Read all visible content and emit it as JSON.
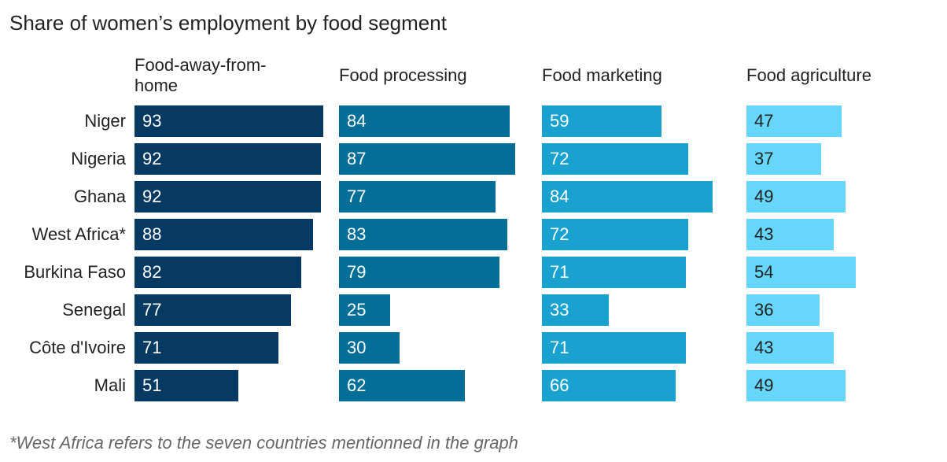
{
  "chart_data": {
    "type": "bar",
    "orientation": "horizontal",
    "layout": "small-multiples",
    "title": "Share of women’s employment by food segment",
    "categories": [
      "Niger",
      "Nigeria",
      "Ghana",
      "West Africa*",
      "Burkina Faso",
      "Senegal",
      "Côte d'Ivoire",
      "Mali"
    ],
    "series": [
      {
        "name": "Food-away-from-home",
        "header_lines": [
          "Food-away-from-",
          "home"
        ],
        "color": "#063a63",
        "label_color": "light",
        "values": [
          93,
          92,
          92,
          88,
          82,
          77,
          71,
          51
        ]
      },
      {
        "name": "Food processing",
        "header_lines": [
          "Food processing"
        ],
        "color": "#036f99",
        "label_color": "light",
        "values": [
          84,
          87,
          77,
          83,
          79,
          25,
          30,
          62
        ]
      },
      {
        "name": "Food marketing",
        "header_lines": [
          "Food marketing"
        ],
        "color": "#19a2d0",
        "label_color": "light",
        "values": [
          59,
          72,
          84,
          72,
          71,
          33,
          71,
          66
        ]
      },
      {
        "name": "Food agriculture",
        "header_lines": [
          "Food agriculture"
        ],
        "color": "#66d6fa",
        "label_color": "dark",
        "values": [
          47,
          37,
          49,
          43,
          54,
          36,
          43,
          49
        ]
      }
    ],
    "xlim": [
      0,
      100
    ],
    "footnote": "*West Africa refers to the seven countries mentionned in the graph"
  }
}
